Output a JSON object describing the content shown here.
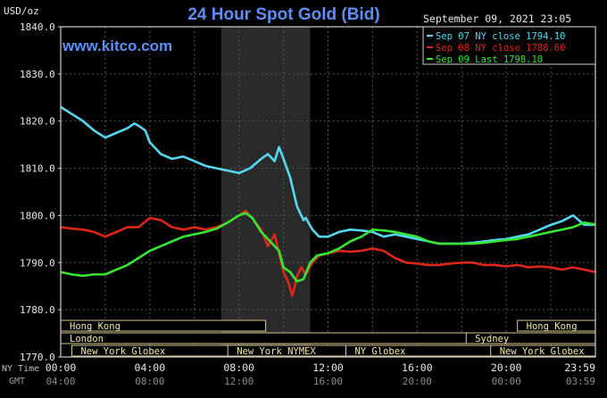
{
  "header": {
    "title": "24 Hour Spot Gold (Bid)",
    "units": "USD/oz",
    "watermark": "www.kitco.com",
    "datetime": "September 09, 2021 23:05"
  },
  "chart_data": {
    "type": "line",
    "title": "24 Hour Spot Gold (Bid)",
    "ylabel": "USD/oz",
    "ylim": [
      1770,
      1840
    ],
    "yticks": [
      "1840.0",
      "1830.0",
      "1820.0",
      "1810.0",
      "1800.0",
      "1790.0",
      "1780.0",
      "1770.0"
    ],
    "ytick_values": [
      1840,
      1830,
      1820,
      1810,
      1800,
      1790,
      1780,
      1770
    ],
    "xlim": [
      0,
      24
    ],
    "x_axis_ny_label": "NY Time",
    "x_axis_gmt_label": "GMT",
    "xticks_ny": [
      "00:00",
      "04:00",
      "08:00",
      "12:00",
      "16:00",
      "20:00",
      "23:59"
    ],
    "xticks_gmt": [
      "04:00",
      "08:00",
      "12:00",
      "16:00",
      "20:00",
      "00:00",
      "03:59"
    ],
    "xtick_positions": [
      0,
      4,
      8,
      12,
      16,
      20,
      24
    ],
    "grid": true,
    "highlight_band": [
      7.2,
      11.2
    ],
    "legend_position": "top-right",
    "series": [
      {
        "name": "Sep 07 NY close 1794.10",
        "color": "#55d8f2",
        "x": [
          0,
          0.5,
          1,
          1.5,
          2,
          2.5,
          3,
          3.3,
          3.5,
          3.8,
          4,
          4.5,
          5,
          5.5,
          6,
          6.5,
          7,
          7.5,
          8,
          8.5,
          9,
          9.3,
          9.6,
          9.8,
          10,
          10.3,
          10.6,
          10.9,
          11,
          11.3,
          11.6,
          12,
          12.5,
          13,
          13.5,
          14,
          14.5,
          15,
          15.5,
          16,
          16.5,
          17,
          17.5,
          18,
          18.5,
          19,
          19.5,
          20,
          20.5,
          21,
          21.5,
          22,
          22.5,
          23,
          23.5,
          24
        ],
        "values": [
          1823,
          1821.5,
          1820,
          1818,
          1816.5,
          1817.5,
          1818.5,
          1819.5,
          1819,
          1818,
          1815.5,
          1813,
          1812,
          1812.5,
          1811.5,
          1810.5,
          1810,
          1809.5,
          1809,
          1810,
          1812,
          1813,
          1811.5,
          1814.5,
          1812,
          1808,
          1802,
          1799,
          1799.5,
          1797,
          1795.5,
          1795.5,
          1796.5,
          1797,
          1796.8,
          1796.5,
          1795.5,
          1796,
          1795.5,
          1795,
          1794.5,
          1794,
          1794,
          1794,
          1794.2,
          1794.5,
          1794.8,
          1795,
          1795.5,
          1796,
          1797,
          1798,
          1798.8,
          1800,
          1798,
          1798
        ]
      },
      {
        "name": "Sep 08 NY close 1788.60",
        "color": "#e0261b",
        "x": [
          0,
          0.5,
          1,
          1.5,
          2,
          2.5,
          3,
          3.5,
          4,
          4.5,
          5,
          5.5,
          6,
          6.5,
          7,
          7.5,
          8,
          8.3,
          8.5,
          9,
          9.3,
          9.6,
          10,
          10.2,
          10.4,
          10.6,
          10.8,
          11,
          11.3,
          11.6,
          12,
          12.5,
          13,
          13.5,
          14,
          14.5,
          15,
          15.5,
          16,
          16.5,
          17,
          17.5,
          18,
          18.5,
          19,
          19.5,
          20,
          20.5,
          21,
          21.5,
          22,
          22.5,
          23,
          23.5,
          24
        ],
        "values": [
          1797.5,
          1797.2,
          1797,
          1796.5,
          1795.5,
          1796.5,
          1797.5,
          1797.5,
          1799.5,
          1799,
          1797.5,
          1797,
          1797.5,
          1797,
          1797.5,
          1798.5,
          1800,
          1801,
          1800,
          1797,
          1793.5,
          1796,
          1788,
          1786,
          1783,
          1787,
          1789,
          1787.5,
          1790,
          1791.5,
          1792,
          1792.5,
          1792.3,
          1792.5,
          1793,
          1792.5,
          1791,
          1790,
          1789.8,
          1789.5,
          1789.5,
          1789.8,
          1790,
          1790,
          1789.5,
          1789.5,
          1789.2,
          1789.5,
          1789,
          1789.2,
          1789,
          1788.5,
          1789,
          1788.5,
          1788
        ]
      },
      {
        "name": "Sep 09 Last 1798.10",
        "color": "#35e635",
        "x": [
          0,
          0.5,
          1,
          1.5,
          2,
          2.5,
          3,
          3.5,
          4,
          4.5,
          5,
          5.5,
          6,
          6.5,
          7,
          7.5,
          8,
          8.3,
          8.6,
          9,
          9.2,
          9.5,
          9.8,
          10,
          10.3,
          10.6,
          10.9,
          11.2,
          11.5,
          12,
          12.5,
          13,
          13.5,
          14,
          14.5,
          15,
          15.5,
          16,
          16.5,
          17,
          17.5,
          18,
          18.5,
          19,
          19.5,
          20,
          20.5,
          21,
          21.5,
          22,
          22.5,
          23,
          23.5,
          24
        ],
        "values": [
          1788,
          1787.5,
          1787.2,
          1787.5,
          1787.5,
          1788.5,
          1789.5,
          1791,
          1792.5,
          1793.5,
          1794.5,
          1795.5,
          1796,
          1796.5,
          1797.2,
          1798.5,
          1800,
          1800.5,
          1799.5,
          1796.5,
          1795.5,
          1794,
          1792.5,
          1789,
          1788,
          1786,
          1786.5,
          1790,
          1791.5,
          1792,
          1793,
          1794.5,
          1795.5,
          1797,
          1796.8,
          1796.5,
          1796,
          1795.5,
          1794.5,
          1794,
          1794,
          1794,
          1794,
          1794.2,
          1794.5,
          1794.8,
          1795,
          1795.5,
          1796,
          1796.5,
          1797,
          1797.5,
          1798.5,
          1798.1
        ]
      }
    ]
  },
  "sessions": [
    {
      "label": "Hong Kong",
      "row": 1,
      "start": 0,
      "end": 9.2
    },
    {
      "label": "London",
      "row": 2,
      "start": 0,
      "end": 18.4
    },
    {
      "label": "New York Globex",
      "row": 3,
      "start": 0.5,
      "end": 12.2
    },
    {
      "label": "New York NYMEX",
      "row": 3,
      "start": 7.5,
      "end": 14.2
    },
    {
      "label": "NY Globex",
      "row": 3,
      "start": 12.8,
      "end": 22.8
    },
    {
      "label": "Hong Kong",
      "row": 1,
      "start": 20.5,
      "end": 24
    },
    {
      "label": "Sydney",
      "row": 2,
      "start": 18.2,
      "end": 24
    },
    {
      "label": "New York Globex",
      "row": 3,
      "start": 19.3,
      "end": 24
    }
  ]
}
